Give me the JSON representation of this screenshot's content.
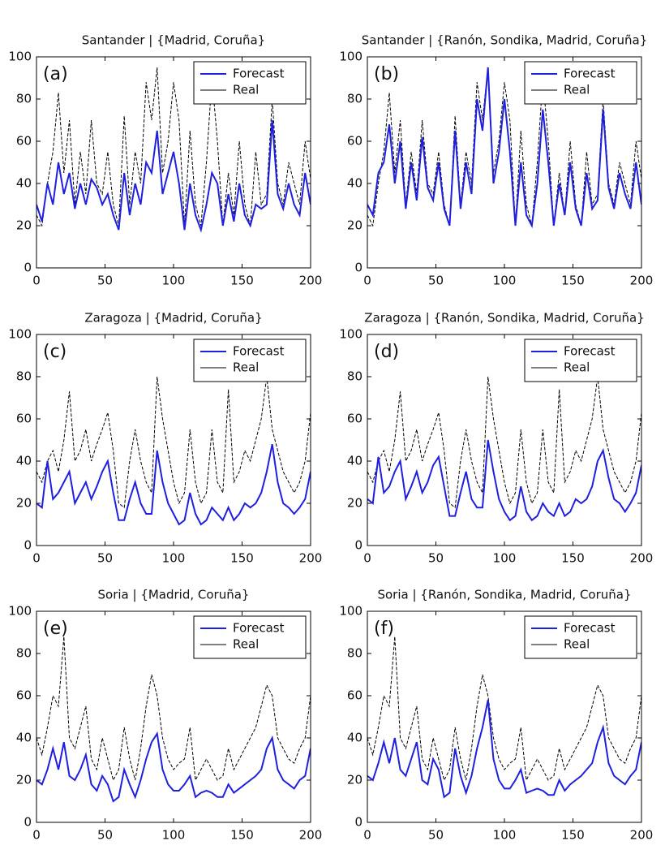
{
  "chart_data": [
    {
      "type": "line",
      "title": "Santander | {Madrid, Coruña}",
      "annotation": "(a)",
      "x": [
        0,
        4,
        8,
        12,
        16,
        20,
        24,
        28,
        32,
        36,
        40,
        44,
        48,
        52,
        56,
        60,
        64,
        68,
        72,
        76,
        80,
        84,
        88,
        92,
        96,
        100,
        104,
        108,
        112,
        116,
        120,
        124,
        128,
        132,
        136,
        140,
        144,
        148,
        152,
        156,
        160,
        164,
        168,
        172,
        176,
        180,
        184,
        188,
        192,
        196,
        200
      ],
      "series": [
        {
          "name": "Forecast",
          "color": "#1f1fe0",
          "linestyle": "solid",
          "values": [
            30,
            22,
            40,
            30,
            50,
            35,
            45,
            28,
            40,
            30,
            42,
            38,
            30,
            35,
            25,
            18,
            45,
            25,
            40,
            30,
            50,
            45,
            65,
            35,
            45,
            55,
            40,
            18,
            40,
            25,
            18,
            30,
            45,
            40,
            20,
            35,
            22,
            40,
            25,
            20,
            30,
            28,
            30,
            70,
            35,
            28,
            40,
            30,
            25,
            45,
            30
          ]
        },
        {
          "name": "Real",
          "color": "#000000",
          "linestyle": "dashed",
          "values": [
            25,
            20,
            40,
            55,
            83,
            45,
            70,
            30,
            55,
            35,
            70,
            40,
            35,
            55,
            30,
            20,
            72,
            30,
            55,
            40,
            88,
            70,
            95,
            45,
            60,
            88,
            70,
            20,
            65,
            30,
            20,
            50,
            90,
            60,
            20,
            45,
            25,
            60,
            30,
            20,
            55,
            30,
            35,
            80,
            40,
            30,
            50,
            40,
            30,
            60,
            42
          ]
        }
      ],
      "xlim": [
        0,
        200
      ],
      "ylim": [
        0,
        100
      ],
      "xticks": [
        0,
        50,
        100,
        150,
        200
      ],
      "yticks": [
        0,
        20,
        40,
        60,
        80,
        100
      ],
      "legend": "upper right"
    },
    {
      "type": "line",
      "title": "Santander | {Ranón, Sondika, Madrid, Coruña}",
      "annotation": "(b)",
      "x": [
        0,
        4,
        8,
        12,
        16,
        20,
        24,
        28,
        32,
        36,
        40,
        44,
        48,
        52,
        56,
        60,
        64,
        68,
        72,
        76,
        80,
        84,
        88,
        92,
        96,
        100,
        104,
        108,
        112,
        116,
        120,
        124,
        128,
        132,
        136,
        140,
        144,
        148,
        152,
        156,
        160,
        164,
        168,
        172,
        176,
        180,
        184,
        188,
        192,
        196,
        200
      ],
      "series": [
        {
          "name": "Forecast",
          "color": "#1f1fe0",
          "linestyle": "solid",
          "values": [
            30,
            25,
            45,
            50,
            68,
            40,
            60,
            28,
            50,
            32,
            62,
            38,
            32,
            50,
            28,
            20,
            65,
            28,
            50,
            35,
            80,
            65,
            95,
            40,
            55,
            80,
            55,
            20,
            50,
            25,
            20,
            40,
            75,
            50,
            20,
            40,
            25,
            50,
            28,
            20,
            45,
            28,
            32,
            75,
            38,
            28,
            45,
            35,
            28,
            50,
            30
          ]
        },
        {
          "name": "Real",
          "color": "#000000",
          "linestyle": "dashed",
          "values": [
            25,
            20,
            40,
            55,
            83,
            45,
            70,
            30,
            55,
            35,
            70,
            40,
            35,
            55,
            30,
            20,
            72,
            30,
            55,
            40,
            88,
            70,
            95,
            45,
            60,
            88,
            70,
            20,
            65,
            30,
            20,
            50,
            90,
            60,
            20,
            45,
            25,
            60,
            30,
            20,
            55,
            30,
            35,
            80,
            40,
            30,
            50,
            40,
            30,
            60,
            42
          ]
        }
      ],
      "xlim": [
        0,
        200
      ],
      "ylim": [
        0,
        100
      ],
      "xticks": [
        0,
        50,
        100,
        150,
        200
      ],
      "yticks": [
        0,
        20,
        40,
        60,
        80,
        100
      ],
      "legend": "upper right"
    },
    {
      "type": "line",
      "title": "Zaragoza | {Madrid, Coruña}",
      "annotation": "(c)",
      "x": [
        0,
        4,
        8,
        12,
        16,
        20,
        24,
        28,
        32,
        36,
        40,
        44,
        48,
        52,
        56,
        60,
        64,
        68,
        72,
        76,
        80,
        84,
        88,
        92,
        96,
        100,
        104,
        108,
        112,
        116,
        120,
        124,
        128,
        132,
        136,
        140,
        144,
        148,
        152,
        156,
        160,
        164,
        168,
        172,
        176,
        180,
        184,
        188,
        192,
        196,
        200
      ],
      "series": [
        {
          "name": "Forecast",
          "color": "#1f1fe0",
          "linestyle": "solid",
          "values": [
            20,
            18,
            40,
            22,
            25,
            30,
            35,
            20,
            25,
            30,
            22,
            28,
            35,
            40,
            25,
            12,
            12,
            22,
            30,
            20,
            15,
            15,
            45,
            30,
            20,
            15,
            10,
            12,
            25,
            15,
            10,
            12,
            18,
            15,
            12,
            18,
            12,
            15,
            20,
            18,
            20,
            25,
            35,
            48,
            30,
            20,
            18,
            15,
            18,
            22,
            35
          ]
        },
        {
          "name": "Real",
          "color": "#000000",
          "linestyle": "dashed",
          "values": [
            35,
            30,
            40,
            45,
            35,
            50,
            73,
            40,
            45,
            55,
            40,
            48,
            55,
            63,
            45,
            20,
            18,
            40,
            55,
            40,
            30,
            25,
            80,
            60,
            45,
            30,
            20,
            25,
            55,
            30,
            20,
            25,
            55,
            30,
            25,
            74,
            30,
            35,
            45,
            40,
            50,
            60,
            80,
            55,
            45,
            35,
            30,
            25,
            30,
            40,
            63
          ]
        }
      ],
      "xlim": [
        0,
        200
      ],
      "ylim": [
        0,
        100
      ],
      "xticks": [
        0,
        50,
        100,
        150,
        200
      ],
      "yticks": [
        0,
        20,
        40,
        60,
        80,
        100
      ],
      "legend": "upper right"
    },
    {
      "type": "line",
      "title": "Zaragoza | {Ranón, Sondika, Madrid, Coruña}",
      "annotation": "(d)",
      "x": [
        0,
        4,
        8,
        12,
        16,
        20,
        24,
        28,
        32,
        36,
        40,
        44,
        48,
        52,
        56,
        60,
        64,
        68,
        72,
        76,
        80,
        84,
        88,
        92,
        96,
        100,
        104,
        108,
        112,
        116,
        120,
        124,
        128,
        132,
        136,
        140,
        144,
        148,
        152,
        156,
        160,
        164,
        168,
        172,
        176,
        180,
        184,
        188,
        192,
        196,
        200
      ],
      "series": [
        {
          "name": "Forecast",
          "color": "#1f1fe0",
          "linestyle": "solid",
          "values": [
            22,
            20,
            42,
            25,
            28,
            35,
            40,
            22,
            28,
            35,
            25,
            30,
            38,
            42,
            28,
            14,
            14,
            25,
            35,
            22,
            18,
            18,
            50,
            35,
            22,
            16,
            12,
            14,
            28,
            16,
            12,
            14,
            20,
            16,
            14,
            20,
            14,
            16,
            22,
            20,
            22,
            28,
            40,
            45,
            32,
            22,
            20,
            16,
            20,
            25,
            38
          ]
        },
        {
          "name": "Real",
          "color": "#000000",
          "linestyle": "dashed",
          "values": [
            35,
            30,
            40,
            45,
            35,
            50,
            73,
            40,
            45,
            55,
            40,
            48,
            55,
            63,
            45,
            20,
            18,
            40,
            55,
            40,
            30,
            25,
            80,
            60,
            45,
            30,
            20,
            25,
            55,
            30,
            20,
            25,
            55,
            30,
            25,
            74,
            30,
            35,
            45,
            40,
            50,
            60,
            80,
            55,
            45,
            35,
            30,
            25,
            30,
            40,
            63
          ]
        }
      ],
      "xlim": [
        0,
        200
      ],
      "ylim": [
        0,
        100
      ],
      "xticks": [
        0,
        50,
        100,
        150,
        200
      ],
      "yticks": [
        0,
        20,
        40,
        60,
        80,
        100
      ],
      "legend": "upper right"
    },
    {
      "type": "line",
      "title": "Soria | {Madrid, Coruña}",
      "annotation": "(e)",
      "x": [
        0,
        4,
        8,
        12,
        16,
        20,
        24,
        28,
        32,
        36,
        40,
        44,
        48,
        52,
        56,
        60,
        64,
        68,
        72,
        76,
        80,
        84,
        88,
        92,
        96,
        100,
        104,
        108,
        112,
        116,
        120,
        124,
        128,
        132,
        136,
        140,
        144,
        148,
        152,
        156,
        160,
        164,
        168,
        172,
        176,
        180,
        184,
        188,
        192,
        196,
        200
      ],
      "series": [
        {
          "name": "Forecast",
          "color": "#1f1fe0",
          "linestyle": "solid",
          "values": [
            20,
            18,
            25,
            35,
            25,
            38,
            22,
            20,
            25,
            32,
            18,
            15,
            22,
            18,
            10,
            12,
            25,
            18,
            12,
            20,
            30,
            38,
            42,
            25,
            18,
            15,
            15,
            18,
            22,
            12,
            14,
            15,
            14,
            12,
            12,
            18,
            14,
            16,
            18,
            20,
            22,
            25,
            35,
            40,
            25,
            20,
            18,
            16,
            20,
            22,
            35
          ]
        },
        {
          "name": "Real",
          "color": "#000000",
          "linestyle": "dashed",
          "values": [
            40,
            32,
            45,
            60,
            55,
            88,
            40,
            35,
            45,
            55,
            30,
            25,
            40,
            30,
            20,
            25,
            45,
            30,
            20,
            35,
            55,
            70,
            60,
            40,
            30,
            25,
            28,
            30,
            45,
            20,
            25,
            30,
            25,
            20,
            22,
            35,
            25,
            30,
            35,
            40,
            45,
            55,
            65,
            60,
            40,
            35,
            30,
            28,
            35,
            40,
            60
          ]
        }
      ],
      "xlim": [
        0,
        200
      ],
      "ylim": [
        0,
        100
      ],
      "xticks": [
        0,
        50,
        100,
        150,
        200
      ],
      "yticks": [
        0,
        20,
        40,
        60,
        80,
        100
      ],
      "legend": "upper right"
    },
    {
      "type": "line",
      "title": "Soria | {Ranón, Sondika, Madrid, Coruña}",
      "annotation": "(f)",
      "x": [
        0,
        4,
        8,
        12,
        16,
        20,
        24,
        28,
        32,
        36,
        40,
        44,
        48,
        52,
        56,
        60,
        64,
        68,
        72,
        76,
        80,
        84,
        88,
        92,
        96,
        100,
        104,
        108,
        112,
        116,
        120,
        124,
        128,
        132,
        136,
        140,
        144,
        148,
        152,
        156,
        160,
        164,
        168,
        172,
        176,
        180,
        184,
        188,
        192,
        196,
        200
      ],
      "series": [
        {
          "name": "Forecast",
          "color": "#1f1fe0",
          "linestyle": "solid",
          "values": [
            22,
            20,
            28,
            38,
            28,
            40,
            25,
            22,
            30,
            38,
            20,
            18,
            30,
            25,
            12,
            14,
            35,
            22,
            14,
            22,
            35,
            45,
            58,
            30,
            20,
            16,
            16,
            20,
            25,
            14,
            15,
            16,
            15,
            13,
            13,
            20,
            15,
            18,
            20,
            22,
            25,
            28,
            38,
            45,
            28,
            22,
            20,
            18,
            22,
            25,
            38
          ]
        },
        {
          "name": "Real",
          "color": "#000000",
          "linestyle": "dashed",
          "values": [
            40,
            32,
            45,
            60,
            55,
            88,
            40,
            35,
            45,
            55,
            30,
            25,
            40,
            30,
            20,
            25,
            45,
            30,
            20,
            35,
            55,
            70,
            60,
            40,
            30,
            25,
            28,
            30,
            45,
            20,
            25,
            30,
            25,
            20,
            22,
            35,
            25,
            30,
            35,
            40,
            45,
            55,
            65,
            60,
            40,
            35,
            30,
            28,
            35,
            40,
            60
          ]
        }
      ],
      "xlim": [
        0,
        200
      ],
      "ylim": [
        0,
        100
      ],
      "xticks": [
        0,
        50,
        100,
        150,
        200
      ],
      "yticks": [
        0,
        20,
        40,
        60,
        80,
        100
      ],
      "legend": "upper right"
    }
  ]
}
